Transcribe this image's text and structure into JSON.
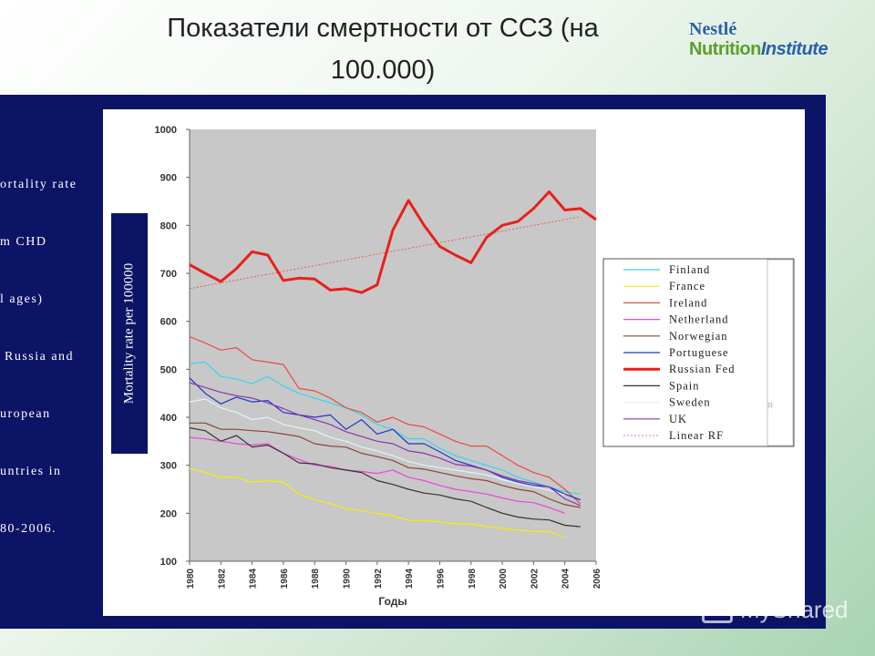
{
  "slide": {
    "title_line1": "Показатели смертности от ССЗ (на",
    "title_line2": "100.000)",
    "side_text": [
      "ortality rate",
      "m CHD",
      "l ages)",
      " Russia and",
      "uropean",
      "untries in",
      "80-2006."
    ],
    "watermark": "MyShared"
  },
  "logo": {
    "line1": "Nestlé",
    "line2a": "Nutrition",
    "line2b": "Institute"
  },
  "colors": {
    "panel": "#0c1466",
    "plot_bg": "#c8c8c8",
    "russia": "#e8201c"
  },
  "chart_data": {
    "type": "line",
    "title": "",
    "xlabel": "Годы",
    "ylabel": "Mortality rate per 100000",
    "ylim": [
      100,
      1000
    ],
    "xlim": [
      1980,
      2006
    ],
    "yticks": [
      100,
      200,
      300,
      400,
      500,
      600,
      700,
      800,
      900,
      1000
    ],
    "xticks": [
      1980,
      1982,
      1984,
      1986,
      1988,
      1990,
      1992,
      1994,
      1996,
      1998,
      2000,
      2002,
      2004,
      2006
    ],
    "grid": false,
    "legend_position": "right",
    "legend_extra": "я",
    "x": [
      1980,
      1981,
      1982,
      1983,
      1984,
      1985,
      1986,
      1987,
      1988,
      1989,
      1990,
      1991,
      1992,
      1993,
      1994,
      1995,
      1996,
      1997,
      1998,
      1999,
      2000,
      2001,
      2002,
      2003,
      2004,
      2005,
      2006
    ],
    "series": [
      {
        "name": "Finland",
        "color": "#33d8e8",
        "width": 1.2,
        "values": [
          512,
          515,
          485,
          480,
          470,
          485,
          465,
          450,
          440,
          430,
          420,
          405,
          385,
          375,
          355,
          355,
          335,
          320,
          310,
          300,
          290,
          275,
          265,
          255,
          245,
          240,
          null
        ]
      },
      {
        "name": "France",
        "color": "#f2f200",
        "width": 1.2,
        "values": [
          293,
          285,
          275,
          275,
          265,
          268,
          265,
          240,
          228,
          220,
          210,
          205,
          200,
          195,
          185,
          185,
          182,
          178,
          178,
          172,
          168,
          165,
          162,
          162,
          150,
          null,
          null
        ]
      },
      {
        "name": "Ireland",
        "color": "#e84c3c",
        "width": 1.2,
        "values": [
          568,
          555,
          540,
          545,
          520,
          515,
          510,
          460,
          455,
          440,
          420,
          410,
          390,
          400,
          385,
          380,
          365,
          350,
          340,
          340,
          320,
          300,
          285,
          275,
          250,
          220,
          null
        ]
      },
      {
        "name": "Netherland",
        "color": "#ee44dd",
        "width": 1.2,
        "values": [
          358,
          355,
          350,
          345,
          342,
          345,
          325,
          312,
          300,
          298,
          290,
          287,
          283,
          290,
          275,
          268,
          258,
          250,
          245,
          240,
          232,
          225,
          222,
          212,
          200,
          null,
          null
        ]
      },
      {
        "name": "Norwegian",
        "color": "#8c4438",
        "width": 1.2,
        "values": [
          388,
          388,
          375,
          375,
          372,
          370,
          365,
          360,
          345,
          340,
          338,
          325,
          318,
          310,
          295,
          292,
          285,
          278,
          272,
          268,
          258,
          250,
          245,
          230,
          218,
          212,
          null
        ]
      },
      {
        "name": "Portuguese",
        "color": "#2234c8",
        "width": 1.2,
        "values": [
          482,
          450,
          428,
          442,
          432,
          435,
          410,
          405,
          400,
          405,
          375,
          395,
          365,
          375,
          345,
          345,
          328,
          310,
          300,
          290,
          275,
          265,
          258,
          255,
          240,
          228,
          null
        ]
      },
      {
        "name": "Russian Fed",
        "color": "#e8201c",
        "width": 3,
        "values": [
          718,
          700,
          683,
          710,
          745,
          738,
          685,
          690,
          688,
          665,
          668,
          660,
          676,
          790,
          852,
          800,
          756,
          738,
          722,
          775,
          800,
          808,
          835,
          870,
          832,
          835,
          812
        ]
      },
      {
        "name": "Spain",
        "color": "#333333",
        "width": 1.2,
        "values": [
          378,
          372,
          350,
          362,
          338,
          342,
          325,
          305,
          303,
          295,
          290,
          285,
          268,
          260,
          250,
          242,
          238,
          230,
          225,
          212,
          200,
          192,
          188,
          186,
          175,
          172,
          null
        ]
      },
      {
        "name": "Sweden",
        "color": "#e0f4fa",
        "width": 1.2,
        "values": [
          432,
          438,
          420,
          410,
          395,
          400,
          385,
          378,
          372,
          358,
          350,
          338,
          330,
          320,
          308,
          300,
          295,
          290,
          285,
          280,
          270,
          262,
          255,
          248,
          238,
          null,
          null
        ]
      },
      {
        "name": "UK",
        "color": "#8c34b0",
        "width": 1.2,
        "values": [
          472,
          462,
          452,
          445,
          440,
          430,
          418,
          405,
          395,
          385,
          370,
          360,
          350,
          345,
          330,
          325,
          315,
          302,
          298,
          290,
          278,
          268,
          262,
          255,
          230,
          216,
          null
        ]
      },
      {
        "name": "Linear RF",
        "color": "#e84c3c",
        "width": 0.8,
        "dash": "2,2",
        "values": [
          668,
          674,
          680,
          686,
          692,
          698,
          704,
          710,
          716,
          722,
          728,
          734,
          740,
          746,
          752,
          758,
          764,
          770,
          776,
          782,
          788,
          794,
          800,
          806,
          812,
          818,
          null
        ]
      }
    ]
  }
}
